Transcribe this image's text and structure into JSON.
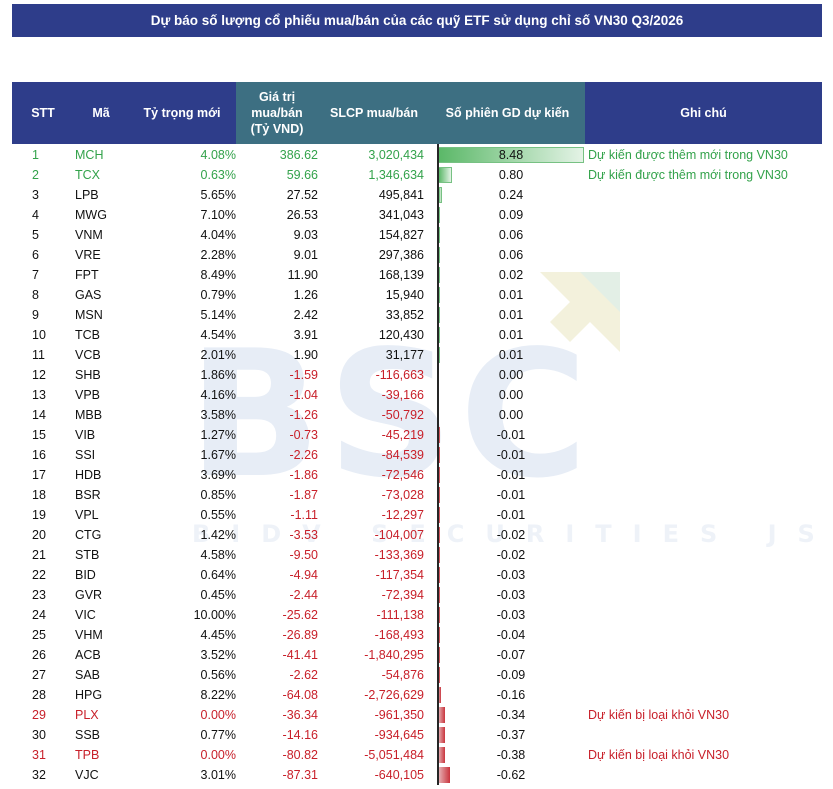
{
  "title": "Dự báo số lượng cổ phiếu mua/bán của các quỹ ETF sử dụng chỉ số VN30 Q3/2026",
  "watermark": {
    "logo": "BSC",
    "subtitle": "BIDV SECURITIES JSC"
  },
  "columns": {
    "stt": "STT",
    "ma": "Mã",
    "ty_trong": "Tỷ trọng mới",
    "gia_tri_l1": "Giá trị",
    "gia_tri_l2": "mua/bán",
    "gia_tri_l3": "(Tỷ VND)",
    "slcp": "SLCP mua/bán",
    "so_phien": "Số phiên GD dự kiến",
    "ghi_chu": "Ghi chú"
  },
  "colors": {
    "header": "#2e3d8a",
    "header_teal": "#3d6f82",
    "added": "#33a24b",
    "removed": "#c8202a"
  },
  "rows": [
    {
      "stt": "1",
      "ma": "MCH",
      "ty_trong": "4.08%",
      "gia_tri": "386.62",
      "slcp": "3,020,434",
      "so_phien": "8.48",
      "bar": 8.48,
      "ghi_chu": "Dự kiến được thêm mới trong VN30",
      "status": "added"
    },
    {
      "stt": "2",
      "ma": "TCX",
      "ty_trong": "0.63%",
      "gia_tri": "59.66",
      "slcp": "1,346,634",
      "so_phien": "0.80",
      "bar": 0.8,
      "ghi_chu": "Dự kiến được thêm mới trong VN30",
      "status": "added"
    },
    {
      "stt": "3",
      "ma": "LPB",
      "ty_trong": "5.65%",
      "gia_tri": "27.52",
      "slcp": "495,841",
      "so_phien": "0.24",
      "bar": 0.24,
      "ghi_chu": "",
      "status": "normal"
    },
    {
      "stt": "4",
      "ma": "MWG",
      "ty_trong": "7.10%",
      "gia_tri": "26.53",
      "slcp": "341,043",
      "so_phien": "0.09",
      "bar": 0.09,
      "ghi_chu": "",
      "status": "normal"
    },
    {
      "stt": "5",
      "ma": "VNM",
      "ty_trong": "4.04%",
      "gia_tri": "9.03",
      "slcp": "154,827",
      "so_phien": "0.06",
      "bar": 0.06,
      "ghi_chu": "",
      "status": "normal"
    },
    {
      "stt": "6",
      "ma": "VRE",
      "ty_trong": "2.28%",
      "gia_tri": "9.01",
      "slcp": "297,386",
      "so_phien": "0.06",
      "bar": 0.06,
      "ghi_chu": "",
      "status": "normal"
    },
    {
      "stt": "7",
      "ma": "FPT",
      "ty_trong": "8.49%",
      "gia_tri": "11.90",
      "slcp": "168,139",
      "so_phien": "0.02",
      "bar": 0.02,
      "ghi_chu": "",
      "status": "normal"
    },
    {
      "stt": "8",
      "ma": "GAS",
      "ty_trong": "0.79%",
      "gia_tri": "1.26",
      "slcp": "15,940",
      "so_phien": "0.01",
      "bar": 0.01,
      "ghi_chu": "",
      "status": "normal"
    },
    {
      "stt": "9",
      "ma": "MSN",
      "ty_trong": "5.14%",
      "gia_tri": "2.42",
      "slcp": "33,852",
      "so_phien": "0.01",
      "bar": 0.01,
      "ghi_chu": "",
      "status": "normal"
    },
    {
      "stt": "10",
      "ma": "TCB",
      "ty_trong": "4.54%",
      "gia_tri": "3.91",
      "slcp": "120,430",
      "so_phien": "0.01",
      "bar": 0.01,
      "ghi_chu": "",
      "status": "normal"
    },
    {
      "stt": "11",
      "ma": "VCB",
      "ty_trong": "2.01%",
      "gia_tri": "1.90",
      "slcp": "31,177",
      "so_phien": "0.01",
      "bar": 0.01,
      "ghi_chu": "",
      "status": "normal"
    },
    {
      "stt": "12",
      "ma": "SHB",
      "ty_trong": "1.86%",
      "gia_tri": "-1.59",
      "slcp": "-116,663",
      "so_phien": "0.00",
      "bar": 0.0,
      "ghi_chu": "",
      "status": "normal"
    },
    {
      "stt": "13",
      "ma": "VPB",
      "ty_trong": "4.16%",
      "gia_tri": "-1.04",
      "slcp": "-39,166",
      "so_phien": "0.00",
      "bar": 0.0,
      "ghi_chu": "",
      "status": "normal"
    },
    {
      "stt": "14",
      "ma": "MBB",
      "ty_trong": "3.58%",
      "gia_tri": "-1.26",
      "slcp": "-50,792",
      "so_phien": "0.00",
      "bar": 0.0,
      "ghi_chu": "",
      "status": "normal"
    },
    {
      "stt": "15",
      "ma": "VIB",
      "ty_trong": "1.27%",
      "gia_tri": "-0.73",
      "slcp": "-45,219",
      "so_phien": "-0.01",
      "bar": -0.01,
      "ghi_chu": "",
      "status": "normal"
    },
    {
      "stt": "16",
      "ma": "SSI",
      "ty_trong": "1.67%",
      "gia_tri": "-2.26",
      "slcp": "-84,539",
      "so_phien": "-0.01",
      "bar": -0.01,
      "ghi_chu": "",
      "status": "normal"
    },
    {
      "stt": "17",
      "ma": "HDB",
      "ty_trong": "3.69%",
      "gia_tri": "-1.86",
      "slcp": "-72,546",
      "so_phien": "-0.01",
      "bar": -0.01,
      "ghi_chu": "",
      "status": "normal"
    },
    {
      "stt": "18",
      "ma": "BSR",
      "ty_trong": "0.85%",
      "gia_tri": "-1.87",
      "slcp": "-73,028",
      "so_phien": "-0.01",
      "bar": -0.01,
      "ghi_chu": "",
      "status": "normal"
    },
    {
      "stt": "19",
      "ma": "VPL",
      "ty_trong": "0.55%",
      "gia_tri": "-1.11",
      "slcp": "-12,297",
      "so_phien": "-0.01",
      "bar": -0.01,
      "ghi_chu": "",
      "status": "normal"
    },
    {
      "stt": "20",
      "ma": "CTG",
      "ty_trong": "1.42%",
      "gia_tri": "-3.53",
      "slcp": "-104,007",
      "so_phien": "-0.02",
      "bar": -0.02,
      "ghi_chu": "",
      "status": "normal"
    },
    {
      "stt": "21",
      "ma": "STB",
      "ty_trong": "4.58%",
      "gia_tri": "-9.50",
      "slcp": "-133,369",
      "so_phien": "-0.02",
      "bar": -0.02,
      "ghi_chu": "",
      "status": "normal"
    },
    {
      "stt": "22",
      "ma": "BID",
      "ty_trong": "0.64%",
      "gia_tri": "-4.94",
      "slcp": "-117,354",
      "so_phien": "-0.03",
      "bar": -0.03,
      "ghi_chu": "",
      "status": "normal"
    },
    {
      "stt": "23",
      "ma": "GVR",
      "ty_trong": "0.45%",
      "gia_tri": "-2.44",
      "slcp": "-72,394",
      "so_phien": "-0.03",
      "bar": -0.03,
      "ghi_chu": "",
      "status": "normal"
    },
    {
      "stt": "24",
      "ma": "VIC",
      "ty_trong": "10.00%",
      "gia_tri": "-25.62",
      "slcp": "-111,138",
      "so_phien": "-0.03",
      "bar": -0.03,
      "ghi_chu": "",
      "status": "normal"
    },
    {
      "stt": "25",
      "ma": "VHM",
      "ty_trong": "4.45%",
      "gia_tri": "-26.89",
      "slcp": "-168,493",
      "so_phien": "-0.04",
      "bar": -0.04,
      "ghi_chu": "",
      "status": "normal"
    },
    {
      "stt": "26",
      "ma": "ACB",
      "ty_trong": "3.52%",
      "gia_tri": "-41.41",
      "slcp": "-1,840,295",
      "so_phien": "-0.07",
      "bar": -0.07,
      "ghi_chu": "",
      "status": "normal"
    },
    {
      "stt": "27",
      "ma": "SAB",
      "ty_trong": "0.56%",
      "gia_tri": "-2.62",
      "slcp": "-54,876",
      "so_phien": "-0.09",
      "bar": -0.09,
      "ghi_chu": "",
      "status": "normal"
    },
    {
      "stt": "28",
      "ma": "HPG",
      "ty_trong": "8.22%",
      "gia_tri": "-64.08",
      "slcp": "-2,726,629",
      "so_phien": "-0.16",
      "bar": -0.16,
      "ghi_chu": "",
      "status": "normal"
    },
    {
      "stt": "29",
      "ma": "PLX",
      "ty_trong": "0.00%",
      "gia_tri": "-36.34",
      "slcp": "-961,350",
      "so_phien": "-0.34",
      "bar": -0.34,
      "ghi_chu": "Dự kiến bị loại khỏi VN30",
      "status": "removed"
    },
    {
      "stt": "30",
      "ma": "SSB",
      "ty_trong": "0.77%",
      "gia_tri": "-14.16",
      "slcp": "-934,645",
      "so_phien": "-0.37",
      "bar": -0.37,
      "ghi_chu": "",
      "status": "normal"
    },
    {
      "stt": "31",
      "ma": "TPB",
      "ty_trong": "0.00%",
      "gia_tri": "-80.82",
      "slcp": "-5,051,484",
      "so_phien": "-0.38",
      "bar": -0.38,
      "ghi_chu": "Dự kiến bị loại khỏi VN30",
      "status": "removed"
    },
    {
      "stt": "32",
      "ma": "VJC",
      "ty_trong": "3.01%",
      "gia_tri": "-87.31",
      "slcp": "-640,105",
      "so_phien": "-0.62",
      "bar": -0.62,
      "ghi_chu": "",
      "status": "normal"
    }
  ]
}
